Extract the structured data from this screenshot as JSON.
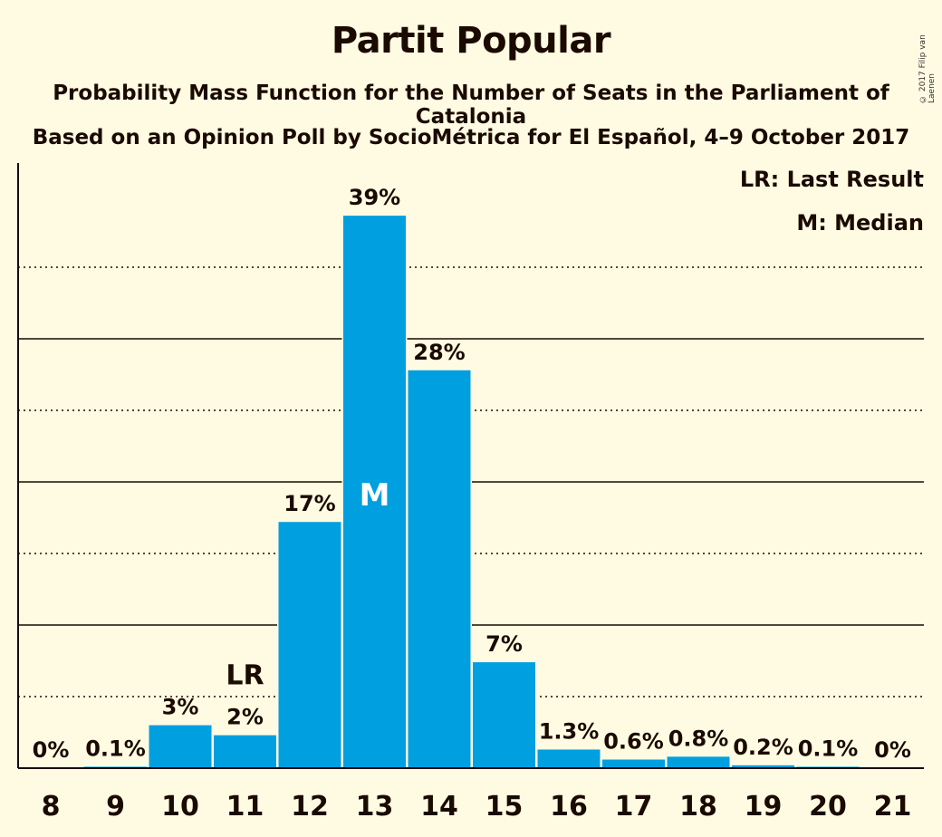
{
  "title": "Partit Popular",
  "subtitle_1": "Probability Mass Function for the Number of Seats in the Parliament of Catalonia",
  "subtitle_2": "Based on an Opinion Poll by SocioMétrica for El Español, 4–9 October 2017",
  "copyright": "© 2017 Filip van Laenen",
  "legend": {
    "lr": "LR: Last Result",
    "m": "M: Median"
  },
  "colors": {
    "bar": "#009fe0",
    "background": "#fffbe3",
    "text": "#1a0a00"
  },
  "chart_data": {
    "type": "bar",
    "categories": [
      "8",
      "9",
      "10",
      "11",
      "12",
      "13",
      "14",
      "15",
      "16",
      "17",
      "18",
      "19",
      "20",
      "21"
    ],
    "values": [
      0,
      0.1,
      3,
      2.3,
      17.2,
      38.6,
      27.8,
      7.4,
      1.3,
      0.6,
      0.8,
      0.2,
      0.1,
      0
    ],
    "data_labels": [
      "0%",
      "0.1%",
      "3%",
      "2%",
      "17%",
      "39%",
      "28%",
      "7%",
      "1.3%",
      "0.6%",
      "0.8%",
      "0.2%",
      "0.1%",
      "0%"
    ],
    "ylim": [
      0,
      42
    ],
    "solid_gridlines": [
      10,
      20,
      30
    ],
    "dotted_gridlines": [
      5,
      15,
      25,
      35
    ],
    "last_result": {
      "category": "11",
      "label": "LR"
    },
    "median": {
      "category": "13",
      "label": "M"
    },
    "legend_position": "top-right"
  }
}
